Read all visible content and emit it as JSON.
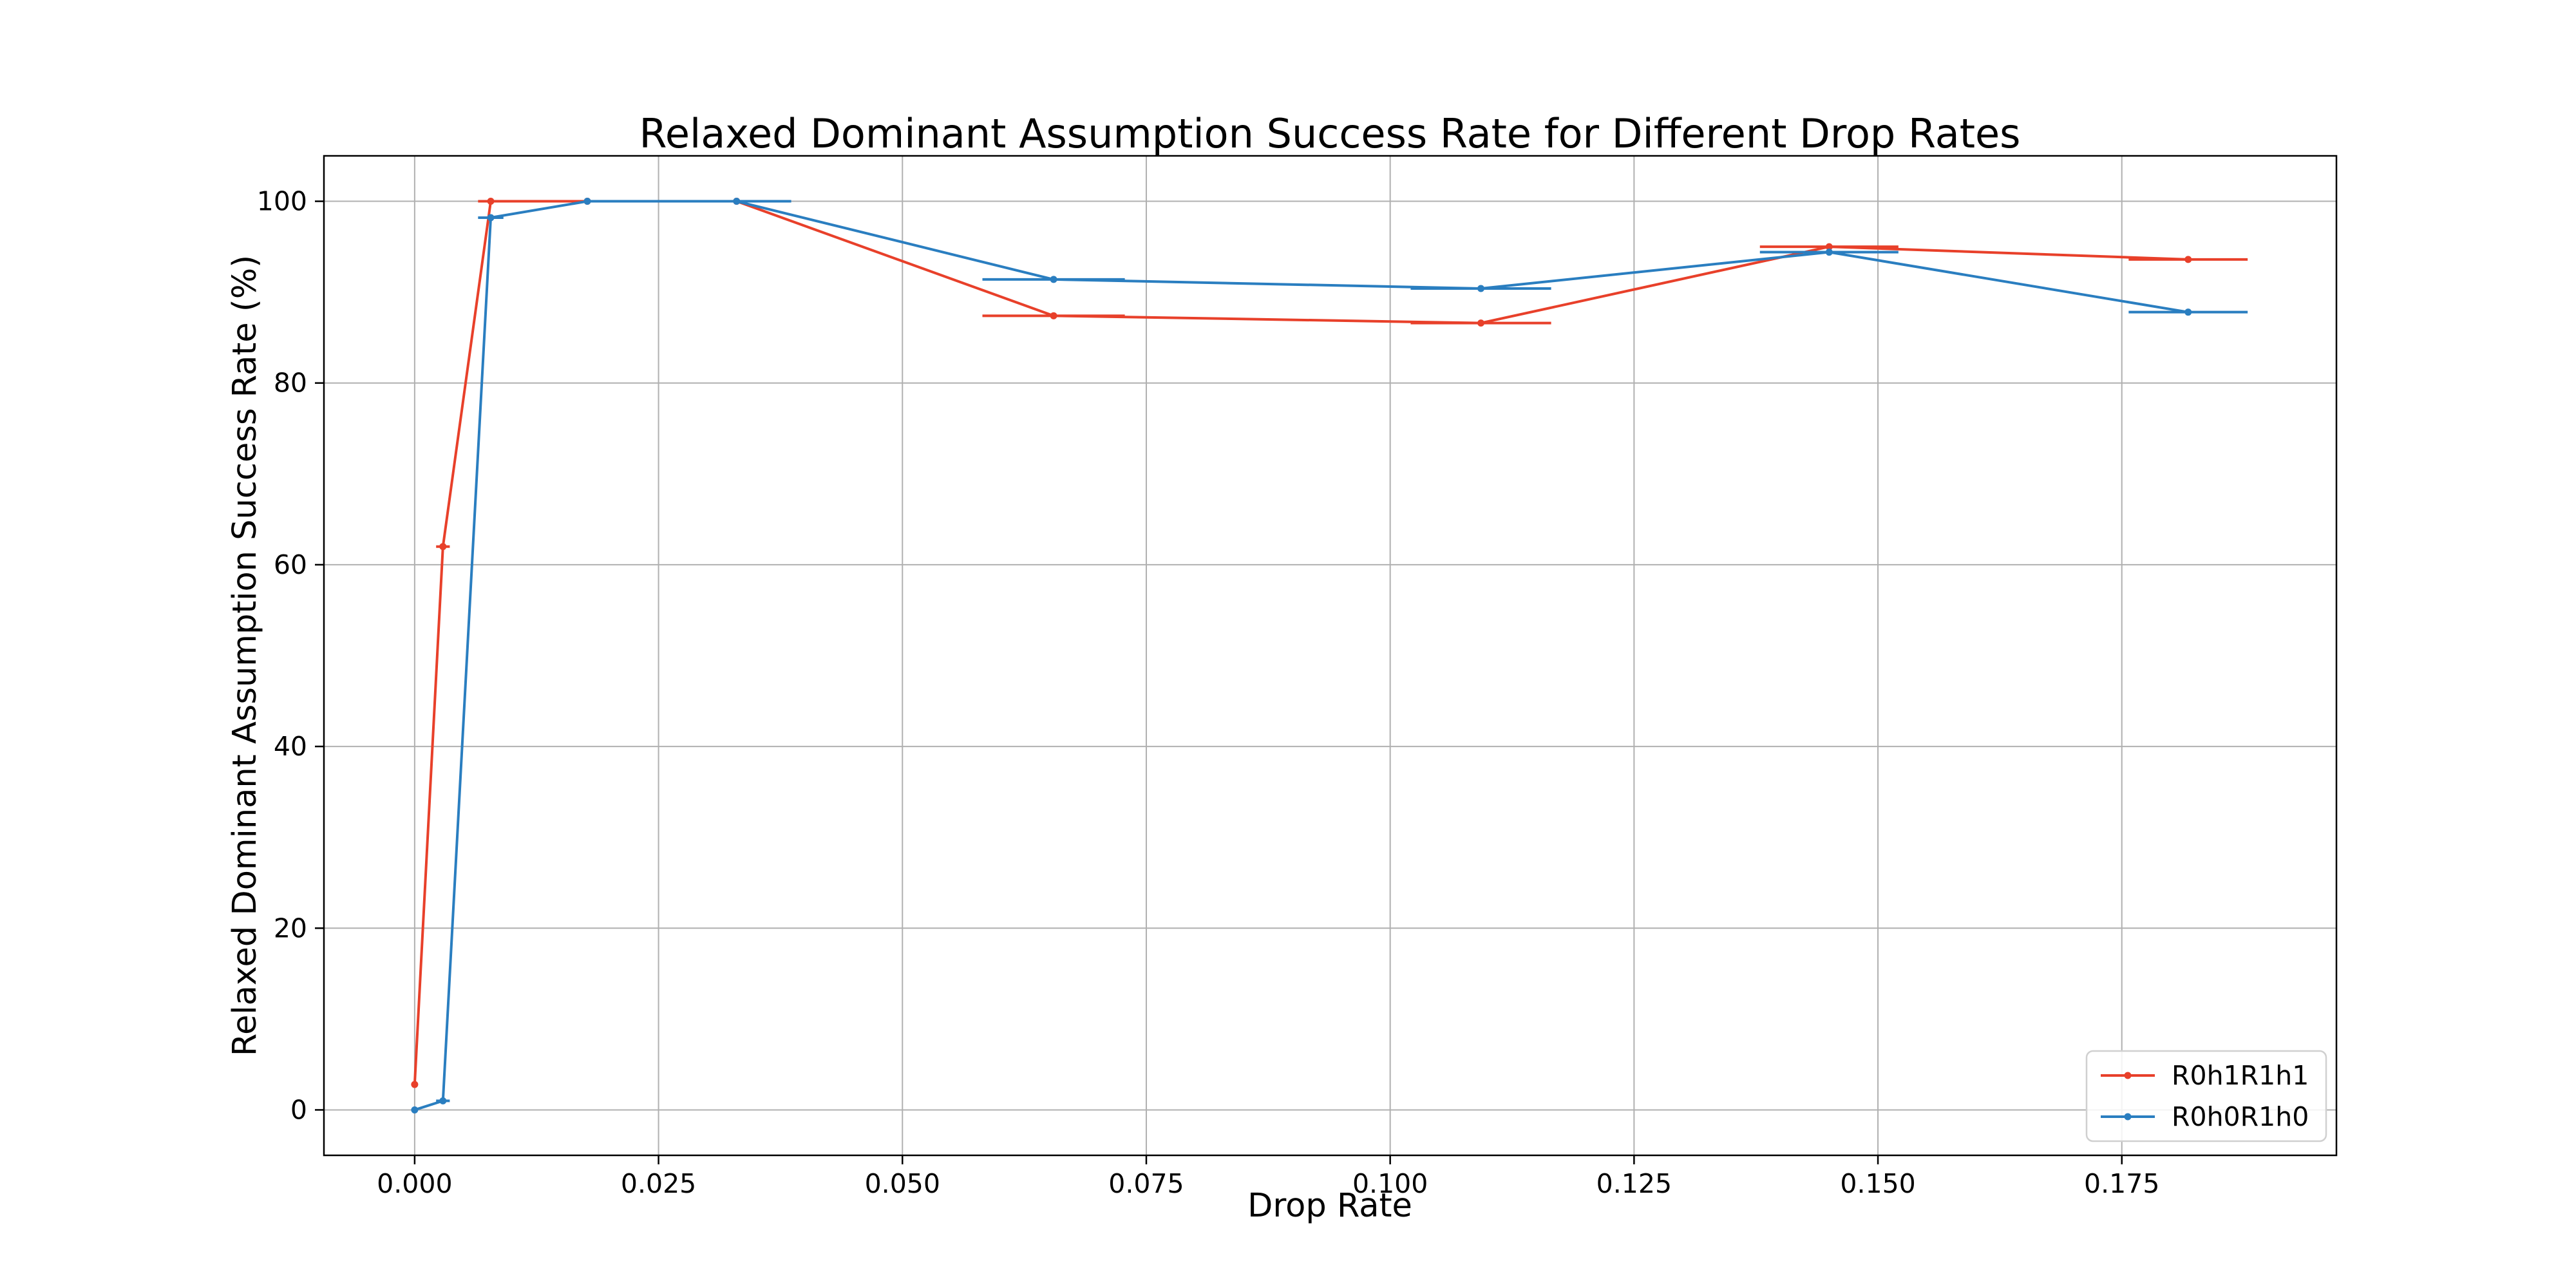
{
  "chart_data": {
    "type": "line",
    "title": "Relaxed Dominant Assumption Success Rate for Different Drop Rates",
    "xlabel": "Drop Rate",
    "ylabel": "Relaxed Dominant Assumption Success Rate (%)",
    "xlim": [
      -0.0093,
      0.197
    ],
    "ylim": [
      -5,
      105
    ],
    "x_ticks": [
      0.0,
      0.025,
      0.05,
      0.075,
      0.1,
      0.125,
      0.15,
      0.175
    ],
    "x_tick_labels": [
      "0.000",
      "0.025",
      "0.050",
      "0.075",
      "0.100",
      "0.125",
      "0.150",
      "0.175"
    ],
    "y_ticks": [
      0,
      20,
      40,
      60,
      80,
      100
    ],
    "y_tick_labels": [
      "0",
      "20",
      "40",
      "60",
      "80",
      "100"
    ],
    "grid": true,
    "legend_position": "bottom-right",
    "series": [
      {
        "name": "R0h1R1h1",
        "color": "#e8402a",
        "points": [
          {
            "x": 0.0,
            "y": 2.8,
            "xerr": 0.0
          },
          {
            "x": 0.0029,
            "y": 62.0,
            "xerr": 0.0007
          },
          {
            "x": 0.0078,
            "y": 100.0,
            "xerr": 0.0013
          },
          {
            "x": 0.0177,
            "y": 100.0,
            "xerr": 0.0
          },
          {
            "x": 0.033,
            "y": 100.0,
            "xerr": 0.0
          },
          {
            "x": 0.0655,
            "y": 87.4,
            "xerr": 0.0073
          },
          {
            "x": 0.1093,
            "y": 86.6,
            "xerr": 0.0072
          },
          {
            "x": 0.145,
            "y": 95.0,
            "xerr": 0.0071
          },
          {
            "x": 0.1818,
            "y": 93.6,
            "xerr": 0.0061
          }
        ]
      },
      {
        "name": "R0h0R1h0",
        "color": "#2a7ec0",
        "points": [
          {
            "x": 0.0,
            "y": 0.0,
            "xerr": 0.0
          },
          {
            "x": 0.0029,
            "y": 1.0,
            "xerr": 0.0007
          },
          {
            "x": 0.0078,
            "y": 98.2,
            "xerr": 0.0013
          },
          {
            "x": 0.0177,
            "y": 100.0,
            "xerr": 0.0
          },
          {
            "x": 0.033,
            "y": 100.0,
            "xerr": 0.0056
          },
          {
            "x": 0.0655,
            "y": 91.4,
            "xerr": 0.0073
          },
          {
            "x": 0.1093,
            "y": 90.4,
            "xerr": 0.0072
          },
          {
            "x": 0.145,
            "y": 94.4,
            "xerr": 0.0071
          },
          {
            "x": 0.1818,
            "y": 87.8,
            "xerr": 0.0061
          }
        ]
      }
    ]
  }
}
